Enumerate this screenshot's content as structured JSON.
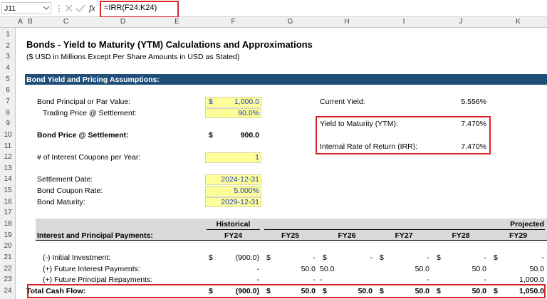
{
  "formula_bar": {
    "name_box": "J11",
    "function_icon": "fx",
    "formula": "=IRR(F24:K24)"
  },
  "column_headers": [
    "A",
    "B",
    "C",
    "D",
    "E",
    "F",
    "G",
    "H",
    "I",
    "J",
    "K"
  ],
  "rows": [
    {
      "number": "1",
      "cells": {}
    },
    {
      "number": "2",
      "cells": {
        "B": "Bonds - Yield to Maturity (YTM) Calculations and Approximations"
      }
    },
    {
      "number": "3",
      "cells": {
        "B": "($ USD in Millions Except Per Share Amounts in USD as Stated)"
      }
    },
    {
      "number": "4",
      "cells": {}
    },
    {
      "number": "5",
      "cells": {
        "B": "Bond Yield and Pricing Assumptions:"
      }
    },
    {
      "number": "6",
      "cells": {}
    },
    {
      "number": "7",
      "cells": {
        "C": "Bond Principal or Par Value:",
        "F": {
          "symbol": "$",
          "amount": "1,000.0"
        },
        "H": "Current Yield:",
        "J": "5.556%"
      }
    },
    {
      "number": "8",
      "cells": {
        "C": "Trading Price @ Settlement:",
        "F": "90.0%"
      }
    },
    {
      "number": "9",
      "cells": {
        "H": "Yield to Maturity (YTM):",
        "J": "7.470%"
      }
    },
    {
      "number": "10",
      "cells": {
        "C": "Bond Price @ Settlement:",
        "F": {
          "symbol": "$",
          "amount": "900.0"
        }
      }
    },
    {
      "number": "11",
      "cells": {
        "H": "Internal Rate of Return (IRR):",
        "J": "7.470%"
      }
    },
    {
      "number": "12",
      "cells": {
        "C": "# of Interest Coupons per Year:",
        "F": "1"
      }
    },
    {
      "number": "13",
      "cells": {}
    },
    {
      "number": "14",
      "cells": {
        "C": "Settlement Date:",
        "F": "2024-12-31"
      }
    },
    {
      "number": "15",
      "cells": {
        "C": "Bond Coupon Rate:",
        "F": "5.000%"
      }
    },
    {
      "number": "16",
      "cells": {
        "C": "Bond Maturity:",
        "F": "2029-12-31"
      }
    },
    {
      "number": "17",
      "cells": {}
    },
    {
      "number": "18",
      "cells": {
        "F": "Historical",
        "G": "Projected"
      }
    },
    {
      "number": "19",
      "cells": {
        "C": "Interest and Principal Payments:",
        "F": "FY24",
        "G": "FY25",
        "H": "FY26",
        "I": "FY27",
        "J": "FY28",
        "K": "FY29"
      }
    },
    {
      "number": "20",
      "cells": {}
    },
    {
      "number": "21",
      "cells": {
        "C": "(-) Initial Investment:",
        "F": {
          "symbol": "$",
          "amount": "(900.0)"
        },
        "G": {
          "symbol": "$",
          "amount": "-"
        },
        "H": {
          "symbol": "$",
          "amount": "-"
        },
        "I": {
          "symbol": "$",
          "amount": "-"
        },
        "J": {
          "symbol": "$",
          "amount": "-"
        },
        "K": {
          "symbol": "$",
          "amount": "-"
        }
      }
    },
    {
      "number": "22",
      "cells": {
        "C": "(+) Future Interest Payments:",
        "F": "-",
        "G": "50.0",
        "H": "50.0",
        "I": "50.0",
        "J": "50.0",
        "K": "50.0"
      }
    },
    {
      "number": "23",
      "cells": {
        "C": "(+) Future Principal Repayments:",
        "F": "-",
        "G": "-",
        "H": "-",
        "I": "-",
        "J": "-",
        "K": "1,000.0"
      }
    },
    {
      "number": "24",
      "cells": {
        "B": "Total Cash Flow:",
        "F": {
          "symbol": "$",
          "amount": "(900.0)"
        },
        "G": {
          "symbol": "$",
          "amount": "50.0"
        },
        "H": {
          "symbol": "$",
          "amount": "50.0"
        },
        "I": {
          "symbol": "$",
          "amount": "50.0"
        },
        "J": {
          "symbol": "$",
          "amount": "50.0"
        },
        "K": {
          "symbol": "$",
          "amount": "1,050.0"
        }
      }
    }
  ]
}
